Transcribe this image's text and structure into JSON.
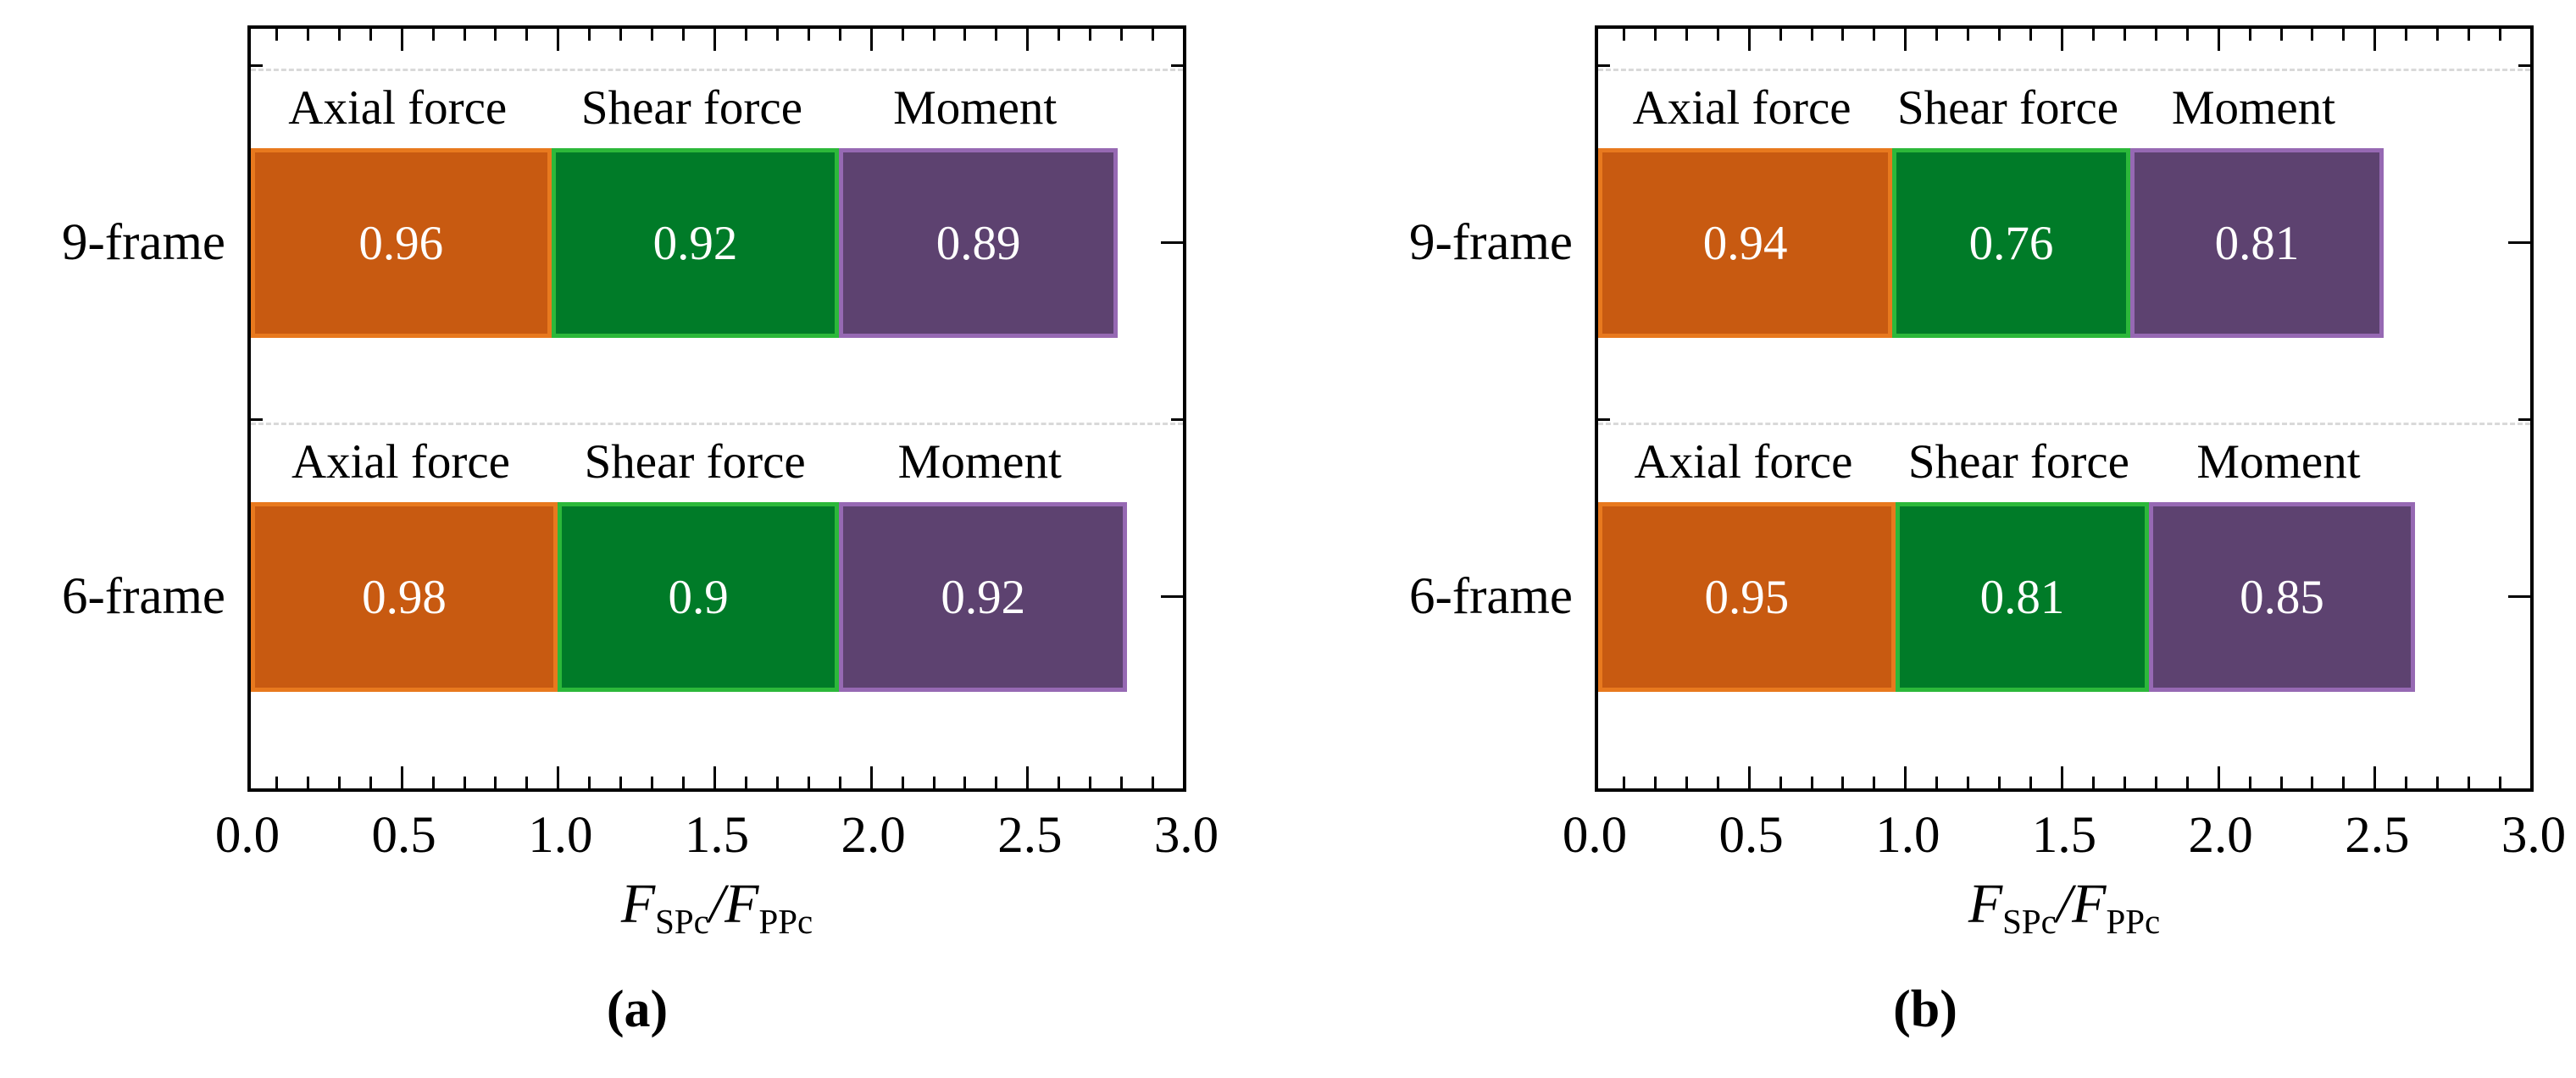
{
  "figure": {
    "background_color": "#FFFFFF",
    "text_color": "#000000",
    "gridline_color": "#D9D9D9",
    "x_tick_labels": [
      "0.0",
      "0.5",
      "1.0",
      "1.5",
      "2.0",
      "2.5",
      "3.0"
    ],
    "x_axis_title": {
      "numerator_symbol": "F",
      "numerator_subscript": "SPc",
      "separator": "/",
      "denominator_symbol": "F",
      "denominator_subscript": "PPc"
    }
  },
  "chart_data": [
    {
      "type": "bar",
      "orientation": "horizontal",
      "stacked": true,
      "panel_label": "(a)",
      "categories": [
        "9-frame",
        "6-frame"
      ],
      "xlabel": "F_SPc/F_PPc",
      "xlim": [
        0,
        3.0
      ],
      "x_major_tick_step": 0.5,
      "x_minor_tick_step": 0.1,
      "grid": "dashed horizontal lines at category boundaries",
      "legend_position": "segment names printed above each bar",
      "series": [
        {
          "name": "Axial force",
          "fill_color": "#C85A11",
          "border_color": "#E8791E",
          "values": [
            0.96,
            0.98
          ],
          "labels": [
            "0.96",
            "0.98"
          ]
        },
        {
          "name": "Shear force",
          "fill_color": "#007B28",
          "border_color": "#2CB83A",
          "values": [
            0.92,
            0.9
          ],
          "labels": [
            "0.92",
            "0.9"
          ]
        },
        {
          "name": "Moment",
          "fill_color": "#5D4270",
          "border_color": "#9669B3",
          "values": [
            0.89,
            0.92
          ],
          "labels": [
            "0.89",
            "0.92"
          ]
        }
      ]
    },
    {
      "type": "bar",
      "orientation": "horizontal",
      "stacked": true,
      "panel_label": "(b)",
      "categories": [
        "9-frame",
        "6-frame"
      ],
      "xlabel": "F_SPc/F_PPc",
      "xlim": [
        0,
        3.0
      ],
      "x_major_tick_step": 0.5,
      "x_minor_tick_step": 0.1,
      "grid": "dashed horizontal lines at category boundaries",
      "legend_position": "segment names printed above each bar",
      "series": [
        {
          "name": "Axial force",
          "fill_color": "#C85A11",
          "border_color": "#E8791E",
          "values": [
            0.94,
            0.95
          ],
          "labels": [
            "0.94",
            "0.95"
          ]
        },
        {
          "name": "Shear force",
          "fill_color": "#007B28",
          "border_color": "#2CB83A",
          "values": [
            0.76,
            0.81
          ],
          "labels": [
            "0.76",
            "0.81"
          ]
        },
        {
          "name": "Moment",
          "fill_color": "#5D4270",
          "border_color": "#9669B3",
          "values": [
            0.81,
            0.85
          ],
          "labels": [
            "0.81",
            "0.85"
          ]
        }
      ]
    }
  ]
}
